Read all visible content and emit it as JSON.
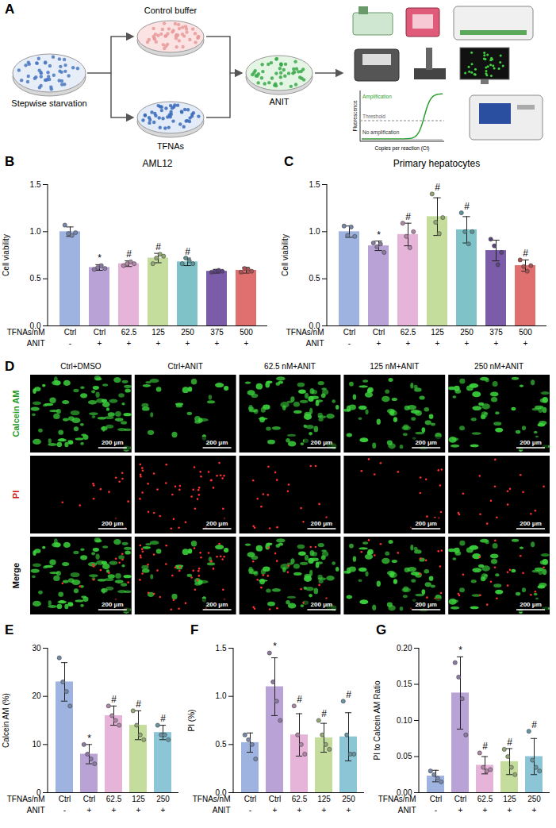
{
  "diagram": {
    "panel": "A",
    "start": "Stepwise starvation",
    "control": "Control buffer",
    "treatment": "TFNAs",
    "challenge": "ANIT",
    "assay_plot": {
      "y_label": "Fluorescence",
      "x_label": "Copies per reaction (Ct)",
      "threshold": "Threshold",
      "positive": "Amplification",
      "negative": "No amplification"
    }
  },
  "chart_data": [
    {
      "panel": "B",
      "type": "bar",
      "title": "AML12",
      "y_label": "Cell viability",
      "x_label": "TFNAs/nM",
      "categories": [
        "Ctrl",
        "Ctrl",
        "62.5",
        "125",
        "250",
        "375",
        "500"
      ],
      "x_label_2": "ANIT",
      "categories_2": [
        "-",
        "+",
        "+",
        "+",
        "+",
        "+",
        "+"
      ],
      "values": [
        1.0,
        0.62,
        0.66,
        0.72,
        0.68,
        0.58,
        0.59
      ],
      "errors": [
        0.05,
        0.03,
        0.03,
        0.05,
        0.04,
        0.02,
        0.03
      ],
      "points": [
        [
          1.07,
          0.98,
          0.96,
          0.99
        ],
        [
          0.6,
          0.62,
          0.64,
          0.61
        ],
        [
          0.64,
          0.66,
          0.68,
          0.66
        ],
        [
          0.66,
          0.72,
          0.76,
          0.74
        ],
        [
          0.66,
          0.72,
          0.69,
          0.66
        ],
        [
          0.57,
          0.58,
          0.59,
          0.58
        ],
        [
          0.57,
          0.61,
          0.6,
          0.58
        ]
      ],
      "significance": [
        null,
        "*",
        "#",
        "#",
        "#",
        null,
        null
      ],
      "colors": [
        "#9fb3e0",
        "#b9a3d6",
        "#e6b3d9",
        "#c4dd9c",
        "#7fc3c9",
        "#7a5ca8",
        "#e07070"
      ],
      "marker": "circle",
      "ylim": [
        0,
        1.5
      ],
      "yticks": [
        {
          "value": 0,
          "label": "0.0"
        },
        {
          "value": 0.5,
          "label": "0.5"
        },
        {
          "value": 1,
          "label": "1.0"
        },
        {
          "value": 1.5,
          "label": "1.5"
        }
      ]
    },
    {
      "panel": "C",
      "type": "bar",
      "title": "Primary hepatocytes",
      "y_label": "Cell viability",
      "x_label": "TFNAs/nM",
      "categories": [
        "Ctrl",
        "Ctrl",
        "62.5",
        "125",
        "250",
        "375",
        "500"
      ],
      "x_label_2": "ANIT",
      "categories_2": [
        "-",
        "+",
        "+",
        "+",
        "+",
        "+",
        "+"
      ],
      "values": [
        1.0,
        0.85,
        0.97,
        1.16,
        1.02,
        0.8,
        0.64
      ],
      "errors": [
        0.06,
        0.05,
        0.12,
        0.2,
        0.14,
        0.11,
        0.06
      ],
      "points": [
        [
          1.06,
          0.96,
          1.05,
          0.95
        ],
        [
          0.88,
          0.84,
          0.87,
          0.78
        ],
        [
          1.09,
          0.95,
          0.83,
          1.0
        ],
        [
          1.4,
          1.1,
          0.98,
          1.15
        ],
        [
          1.2,
          1.0,
          0.87,
          1.0
        ],
        [
          0.92,
          0.85,
          0.65,
          0.78
        ],
        [
          0.7,
          0.63,
          0.58,
          0.64
        ]
      ],
      "significance": [
        null,
        "*",
        "#",
        "#",
        "#",
        null,
        "#"
      ],
      "colors": [
        "#9fb3e0",
        "#b9a3d6",
        "#e6b3d9",
        "#c4dd9c",
        "#7fc3c9",
        "#7a5ca8",
        "#e07070"
      ],
      "marker": "circle",
      "ylim": [
        0,
        1.5
      ],
      "yticks": [
        {
          "value": 0,
          "label": "0.0"
        },
        {
          "value": 0.5,
          "label": "0.5"
        },
        {
          "value": 1,
          "label": "1.0"
        },
        {
          "value": 1.5,
          "label": "1.5"
        }
      ]
    },
    {
      "panel": "E",
      "type": "bar",
      "y_label": "Calcein AM (%)",
      "x_label": "TFNAs/nM",
      "categories": [
        "Ctrl",
        "Ctrl",
        "62.5",
        "125",
        "250"
      ],
      "x_label_2": "ANIT",
      "categories_2": [
        "-",
        "+",
        "+",
        "+",
        "+"
      ],
      "values": [
        23,
        8,
        16,
        14,
        12.5
      ],
      "errors": [
        4,
        2,
        2,
        3,
        1.5
      ],
      "points": [
        [
          28,
          23,
          21,
          18
        ],
        [
          10,
          8,
          7,
          6
        ],
        [
          18,
          16,
          15,
          14
        ],
        [
          17,
          14,
          12,
          11
        ],
        [
          14,
          12,
          12,
          11
        ]
      ],
      "significance": [
        null,
        "*",
        "#",
        "#",
        "#"
      ],
      "colors": [
        "#9fb3e0",
        "#b9a3d6",
        "#e6b3d9",
        "#c4dd9c",
        "#8cc5d6"
      ],
      "marker": "circle",
      "ylim": [
        0,
        30
      ],
      "yticks": [
        0,
        10,
        20,
        30
      ]
    },
    {
      "panel": "F",
      "type": "bar",
      "y_label": "PI (%)",
      "x_label": "TFNAs/nM",
      "categories": [
        "Ctrl",
        "Ctrl",
        "62.5",
        "125",
        "250"
      ],
      "x_label_2": "ANIT",
      "categories_2": [
        "-",
        "+",
        "+",
        "+",
        "+"
      ],
      "values": [
        0.52,
        1.1,
        0.6,
        0.57,
        0.58
      ],
      "errors": [
        0.1,
        0.3,
        0.22,
        0.15,
        0.25
      ],
      "points": [
        [
          0.6,
          0.55,
          0.5,
          0.35
        ],
        [
          1.45,
          1.15,
          0.95,
          0.75
        ],
        [
          0.9,
          0.6,
          0.5,
          0.4
        ],
        [
          0.75,
          0.6,
          0.5,
          0.45
        ],
        [
          0.95,
          0.6,
          0.4,
          0.4
        ]
      ],
      "significance": [
        null,
        "*",
        "#",
        "#",
        "#"
      ],
      "colors": [
        "#9fb3e0",
        "#b9a3d6",
        "#e6b3d9",
        "#c4dd9c",
        "#8cc5d6"
      ],
      "marker": "circle",
      "ylim": [
        0,
        1.5
      ],
      "yticks": [
        {
          "value": 0,
          "label": "0.0"
        },
        {
          "value": 0.5,
          "label": "0.5"
        },
        {
          "value": 1,
          "label": "1.0"
        },
        {
          "value": 1.5,
          "label": "1.5"
        }
      ]
    },
    {
      "panel": "G",
      "type": "bar",
      "y_label": "PI to Calcein AM Ratio",
      "x_label": "TFNAs/nM",
      "categories": [
        "Ctrl",
        "Ctrl",
        "62.5",
        "125",
        "250"
      ],
      "x_label_2": "ANIT",
      "categories_2": [
        "-",
        "+",
        "+",
        "+",
        "+"
      ],
      "values": [
        0.023,
        0.138,
        0.038,
        0.043,
        0.05
      ],
      "errors": [
        0.008,
        0.05,
        0.012,
        0.018,
        0.025
      ],
      "points": [
        [
          0.03,
          0.025,
          0.02,
          0.015
        ],
        [
          0.18,
          0.16,
          0.13,
          0.08
        ],
        [
          0.055,
          0.035,
          0.03,
          0.032
        ],
        [
          0.06,
          0.05,
          0.035,
          0.025
        ],
        [
          0.085,
          0.045,
          0.035,
          0.03
        ]
      ],
      "significance": [
        null,
        "*",
        "#",
        "#",
        "#"
      ],
      "colors": [
        "#9fb3e0",
        "#b9a3d6",
        "#e6b3d9",
        "#c4dd9c",
        "#8cc5d6"
      ],
      "marker": "circle",
      "ylim": [
        0,
        0.2
      ],
      "yticks": [
        {
          "value": 0,
          "label": "0.00"
        },
        {
          "value": 0.05,
          "label": "0.05"
        },
        {
          "value": 0.1,
          "label": "0.10"
        },
        {
          "value": 0.15,
          "label": "0.15"
        },
        {
          "value": 0.2,
          "label": "0.20"
        }
      ]
    }
  ],
  "images": {
    "panel": "D",
    "columns": [
      "Ctrl+DMSO",
      "Ctrl+ANIT",
      "62.5 nM+ANIT",
      "125 nM+ANIT",
      "250 nM+ANIT"
    ],
    "rows": [
      "Calcein AM",
      "PI",
      "Merge"
    ],
    "scale_bar": "200 μm"
  }
}
